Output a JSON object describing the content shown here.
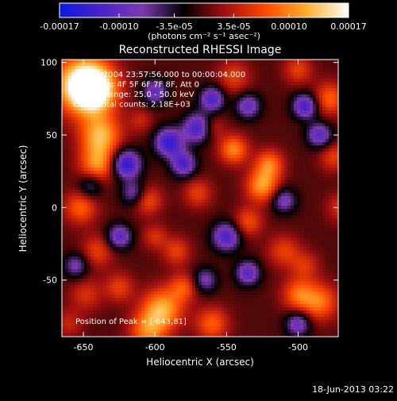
{
  "chart_data": {
    "type": "heatmap",
    "title": "Reconstructed RHESSI Image",
    "xlabel": "Heliocentric X (arcsec)",
    "ylabel": "Heliocentric Y (arcsec)",
    "xlim": [
      -665,
      -472
    ],
    "ylim": [
      -89,
      102
    ],
    "x_ticks": [
      -650,
      -600,
      -550,
      -500
    ],
    "y_ticks": [
      -50,
      0,
      50,
      100
    ],
    "annotations": [
      "__-May-2004 23:57:56.000 to 00:00:04.000",
      "Detectors: 4F 5F 6F 7F 8F, Att 0",
      "Energy Range: 25.0 - 50.0 keV",
      "Clean    Total counts: 2.18E+03"
    ],
    "peak_label": "Position of Peak = [-643,81]",
    "colorbar": {
      "min": -0.00017,
      "max": 0.00017,
      "tick_labels": [
        "-0.00017",
        "-0.00010",
        "-3.5e-05",
        "3.5e-05",
        "0.00010",
        "0.00017"
      ],
      "tick_values": [
        -0.00017,
        -0.0001,
        -3.5e-05,
        3.5e-05,
        0.0001,
        0.00017
      ],
      "label": "(photons cm⁻² s⁻¹ asec⁻²)",
      "colors": [
        "#0a1ae0",
        "#4a22c8",
        "#7c3ab0",
        "#000000",
        "#a01010",
        "#ff4a00",
        "#ffb030",
        "#ffffff"
      ]
    },
    "blobs": [
      {
        "x": -650,
        "y": 85,
        "v": 0.00017,
        "s": 14
      },
      {
        "x": -643,
        "y": 81,
        "v": 0.00015,
        "s": 10
      },
      {
        "x": -638,
        "y": 50,
        "v": 0.00012,
        "s": 10
      },
      {
        "x": -640,
        "y": 30,
        "v": 0.0001,
        "s": 9
      },
      {
        "x": -652,
        "y": 0,
        "v": 8e-05,
        "s": 8
      },
      {
        "x": -640,
        "y": -30,
        "v": 6e-05,
        "s": 8
      },
      {
        "x": -648,
        "y": -60,
        "v": 5e-05,
        "s": 8
      },
      {
        "x": -660,
        "y": -80,
        "v": 4e-05,
        "s": 7
      },
      {
        "x": -595,
        "y": -70,
        "v": 0.00012,
        "s": 10
      },
      {
        "x": -605,
        "y": -85,
        "v": 9e-05,
        "s": 9
      },
      {
        "x": -625,
        "y": -55,
        "v": 6e-05,
        "s": 7
      },
      {
        "x": -560,
        "y": -80,
        "v": 8e-05,
        "s": 8
      },
      {
        "x": -580,
        "y": -55,
        "v": 7e-05,
        "s": 7
      },
      {
        "x": -545,
        "y": 40,
        "v": 0.0001,
        "s": 7
      },
      {
        "x": -525,
        "y": 15,
        "v": 0.00011,
        "s": 8
      },
      {
        "x": -520,
        "y": 30,
        "v": 9e-05,
        "s": 7
      },
      {
        "x": -535,
        "y": -10,
        "v": 7e-05,
        "s": 7
      },
      {
        "x": -510,
        "y": -30,
        "v": 6e-05,
        "s": 8
      },
      {
        "x": -495,
        "y": -40,
        "v": 5e-05,
        "s": 7
      },
      {
        "x": -485,
        "y": -65,
        "v": 9e-05,
        "s": 9
      },
      {
        "x": -500,
        "y": -60,
        "v": 8e-05,
        "s": 8
      },
      {
        "x": -478,
        "y": 75,
        "v": 8e-05,
        "s": 8
      },
      {
        "x": -500,
        "y": 95,
        "v": 6e-05,
        "s": 7
      },
      {
        "x": -475,
        "y": 35,
        "v": 6e-05,
        "s": 7
      },
      {
        "x": -545,
        "y": 90,
        "v": 6e-05,
        "s": 8
      },
      {
        "x": -570,
        "y": 10,
        "v": 6e-05,
        "s": 7
      },
      {
        "x": -605,
        "y": 5,
        "v": 7e-05,
        "s": 7
      },
      {
        "x": -585,
        "y": -30,
        "v": 6e-05,
        "s": 7
      },
      {
        "x": -600,
        "y": -20,
        "v": 5e-05,
        "s": 6
      },
      {
        "x": -560,
        "y": 55,
        "v": 5e-05,
        "s": 6
      },
      {
        "x": -610,
        "y": 60,
        "v": 4e-05,
        "s": 6
      },
      {
        "x": -470,
        "y": 0,
        "v": 5e-05,
        "s": 7
      },
      {
        "x": -620,
        "y": 30,
        "v": -0.00015,
        "s": 7
      },
      {
        "x": -590,
        "y": 45,
        "v": -0.00014,
        "s": 7
      },
      {
        "x": -570,
        "y": 55,
        "v": -0.00013,
        "s": 7
      },
      {
        "x": -580,
        "y": 30,
        "v": -0.00012,
        "s": 6
      },
      {
        "x": -600,
        "y": 80,
        "v": -0.0001,
        "s": 6
      },
      {
        "x": -560,
        "y": 75,
        "v": -0.00012,
        "s": 6
      },
      {
        "x": -535,
        "y": 70,
        "v": -0.0001,
        "s": 6
      },
      {
        "x": -495,
        "y": 70,
        "v": -0.00013,
        "s": 6
      },
      {
        "x": -485,
        "y": 50,
        "v": -0.00011,
        "s": 6
      },
      {
        "x": -510,
        "y": 5,
        "v": -9e-05,
        "s": 6
      },
      {
        "x": -550,
        "y": -20,
        "v": -0.00012,
        "s": 7
      },
      {
        "x": -535,
        "y": -45,
        "v": -0.00011,
        "s": 6
      },
      {
        "x": -625,
        "y": -20,
        "v": -0.00011,
        "s": 6
      },
      {
        "x": -615,
        "y": 10,
        "v": -8e-05,
        "s": 6
      },
      {
        "x": -500,
        "y": -80,
        "v": -0.0001,
        "s": 6
      },
      {
        "x": -655,
        "y": -40,
        "v": -8e-05,
        "s": 6
      },
      {
        "x": -645,
        "y": 15,
        "v": -7e-05,
        "s": 6
      },
      {
        "x": -565,
        "y": -50,
        "v": -8e-05,
        "s": 6
      }
    ]
  },
  "footer": {
    "timestamp": "18-Jun-2013 03:22"
  }
}
